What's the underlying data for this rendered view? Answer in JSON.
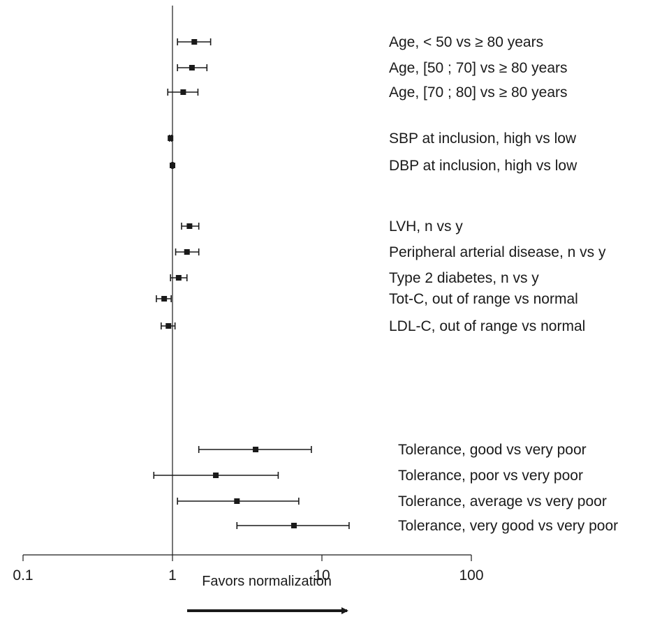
{
  "chart_data": {
    "type": "forest",
    "x_scale": "log",
    "xlim": [
      0.1,
      100
    ],
    "reference_line": 1,
    "x_ticks": [
      "0.1",
      "1",
      "10",
      "100"
    ],
    "xlabel": "Favors normalization",
    "grid": false,
    "rows": [
      {
        "label": "Age, < 50 vs ≥ 80 years",
        "estimate": 1.4,
        "ci": [
          1.08,
          1.8
        ]
      },
      {
        "label": "Age, [50 ; 70] vs ≥ 80 years",
        "estimate": 1.35,
        "ci": [
          1.08,
          1.7
        ]
      },
      {
        "label": "Age, [70 ; 80] vs ≥ 80 years",
        "estimate": 1.18,
        "ci": [
          0.93,
          1.48
        ]
      },
      {
        "label": "SBP at inclusion, high vs low",
        "estimate": 0.97,
        "ci": [
          0.955,
          0.985
        ]
      },
      {
        "label": "DBP at inclusion, high vs low",
        "estimate": 1.0,
        "ci": [
          0.99,
          1.01
        ]
      },
      {
        "label": "LVH, n vs y",
        "estimate": 1.3,
        "ci": [
          1.15,
          1.5
        ]
      },
      {
        "label": "Peripheral arterial disease, n vs y",
        "estimate": 1.25,
        "ci": [
          1.05,
          1.5
        ]
      },
      {
        "label": "Type 2 diabetes, n vs y",
        "estimate": 1.1,
        "ci": [
          0.97,
          1.25
        ]
      },
      {
        "label": "Tot-C, out of range vs normal",
        "estimate": 0.88,
        "ci": [
          0.78,
          0.98
        ]
      },
      {
        "label": "LDL-C, out of range vs normal",
        "estimate": 0.94,
        "ci": [
          0.84,
          1.04
        ]
      },
      {
        "label": "Tolerance, good vs very poor",
        "estimate": 3.6,
        "ci": [
          1.5,
          8.5
        ]
      },
      {
        "label": "Tolerance, poor vs very poor",
        "estimate": 1.95,
        "ci": [
          0.75,
          5.1
        ]
      },
      {
        "label": "Tolerance, average vs very poor",
        "estimate": 2.7,
        "ci": [
          1.08,
          7.0
        ]
      },
      {
        "label": "Tolerance, very good vs very poor",
        "estimate": 6.5,
        "ci": [
          2.7,
          15.2
        ]
      }
    ]
  }
}
